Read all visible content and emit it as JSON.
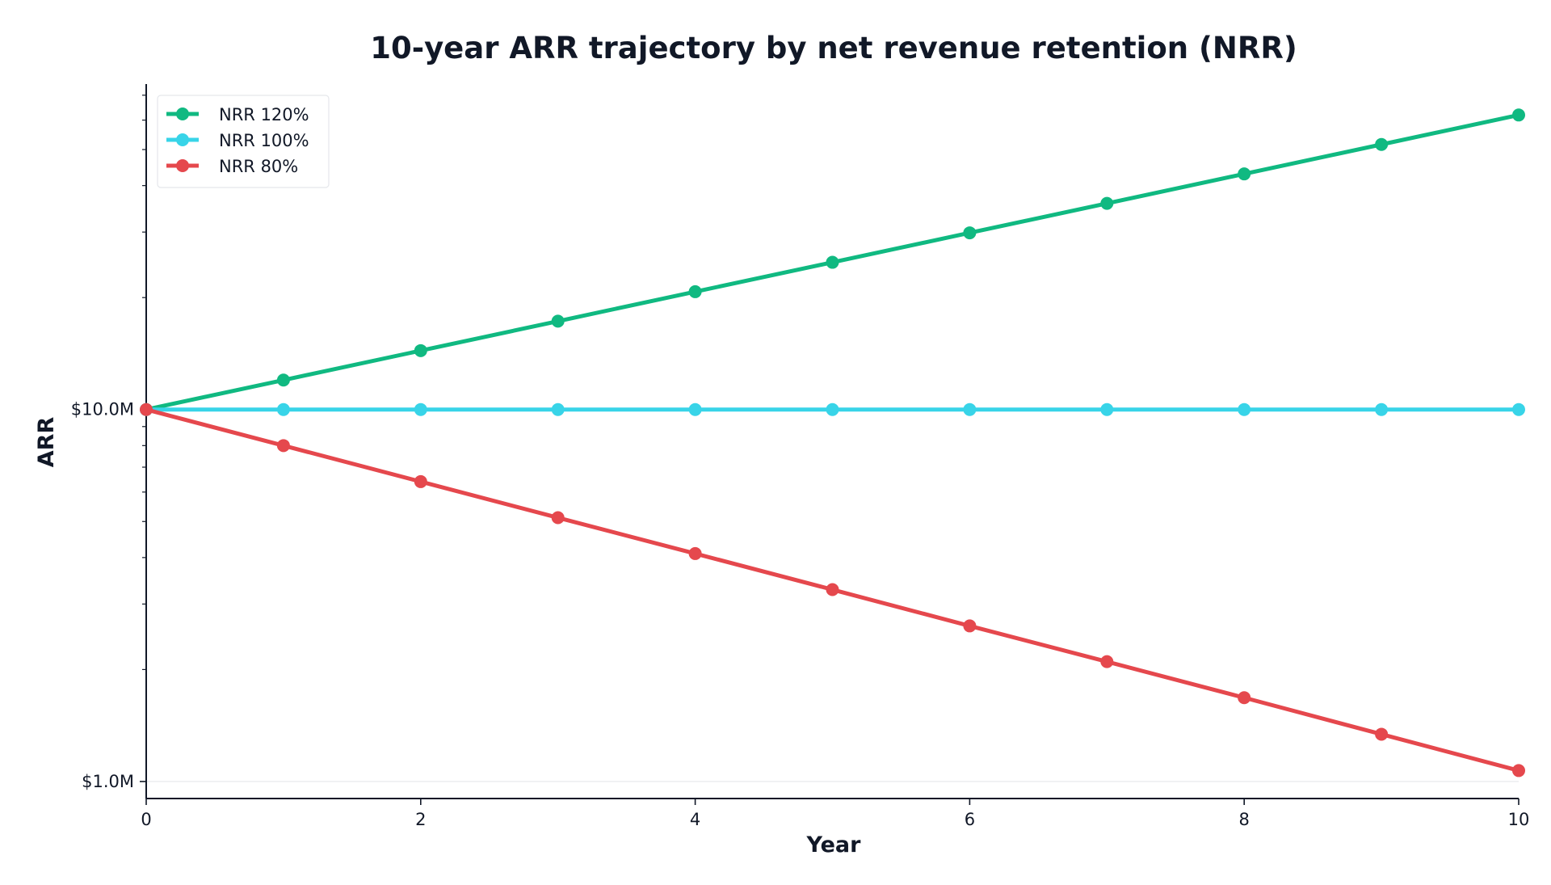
{
  "chart_data": {
    "type": "line",
    "title": "10-year ARR trajectory by net revenue retention (NRR)",
    "xlabel": "Year",
    "ylabel": "ARR",
    "x": [
      0,
      1,
      2,
      3,
      4,
      5,
      6,
      7,
      8,
      9,
      10
    ],
    "x_ticks": [
      0,
      2,
      4,
      6,
      8,
      10
    ],
    "x_tick_labels": [
      "0",
      "2",
      "4",
      "6",
      "8",
      "10"
    ],
    "xlim": [
      0,
      10
    ],
    "y_scale": "log",
    "ylim": [
      0.9,
      75
    ],
    "y_major_ticks": [
      1,
      10
    ],
    "y_tick_labels": [
      "$1.0M",
      "$10.0M"
    ],
    "y_minor_ticks": [
      2,
      3,
      4,
      5,
      6,
      7,
      8,
      9,
      20,
      30,
      40,
      50,
      60,
      70
    ],
    "y_unit": "$M",
    "grid": "horizontal major only",
    "legend_position": "top-left",
    "series": [
      {
        "name": "NRR 120%",
        "color": "#10b981",
        "values": [
          10.0,
          12.0,
          14.4,
          17.28,
          20.74,
          24.88,
          29.86,
          35.83,
          43.0,
          51.6,
          61.92
        ]
      },
      {
        "name": "NRR 100%",
        "color": "#38d4e8",
        "values": [
          10.0,
          10.0,
          10.0,
          10.0,
          10.0,
          10.0,
          10.0,
          10.0,
          10.0,
          10.0,
          10.0
        ]
      },
      {
        "name": "NRR 80%",
        "color": "#e5484d",
        "values": [
          10.0,
          8.0,
          6.4,
          5.12,
          4.1,
          3.28,
          2.62,
          2.1,
          1.68,
          1.34,
          1.07
        ]
      }
    ]
  }
}
